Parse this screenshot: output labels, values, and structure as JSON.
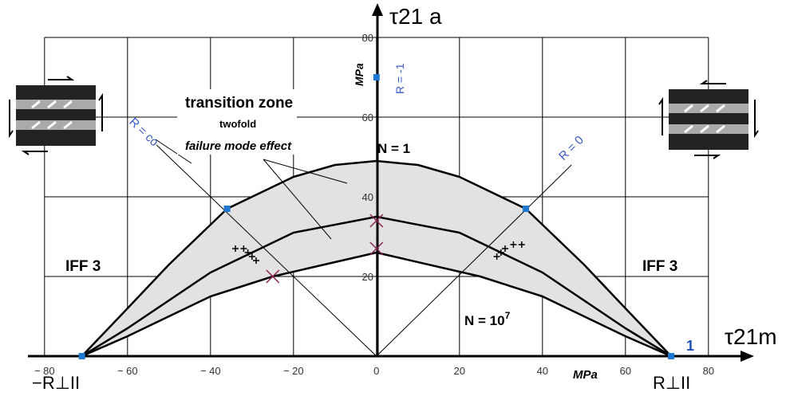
{
  "chart_data": {
    "type": "line",
    "y_axis_label": "τ21 a",
    "x_axis_label": "τ21m",
    "y_unit_label": "MPa",
    "x_unit_label": "MPa",
    "left_intercept_label": "−R⊥II",
    "right_intercept_label": "R⊥II",
    "right_point_label": "1",
    "r_minus_one_label": "R = -1",
    "left_mode_label": "IFF 3",
    "right_mode_label": "IFF 3",
    "n1_label": "N = 1",
    "n_high_label": {
      "base": "N = 10",
      "exponent": "7"
    },
    "transition_title": "transition zone",
    "transition_line2": "twofold",
    "transition_line3": "failure mode effect",
    "xlim": [
      -84,
      91
    ],
    "ylim": [
      0,
      88
    ],
    "xticks": [
      {
        "value": -80,
        "label": "− 80"
      },
      {
        "value": -60,
        "label": "− 60"
      },
      {
        "value": -40,
        "label": "− 40"
      },
      {
        "value": -20,
        "label": "− 20"
      },
      0,
      20,
      40,
      60,
      80
    ],
    "yticks": [
      20,
      40,
      60,
      80
    ],
    "grid": true,
    "series": [
      {
        "color": "#000000",
        "x": [
          -71,
          -60,
          -50,
          -36,
          -20,
          -10,
          0,
          10,
          20,
          36,
          50,
          60,
          71
        ],
        "values": [
          0,
          12,
          23,
          37,
          45,
          48,
          49,
          48,
          45,
          37,
          23,
          12,
          0
        ]
      },
      {
        "color": "#000000",
        "x": [
          -71,
          -60,
          -40,
          -20,
          0,
          20,
          40,
          60,
          71
        ],
        "values": [
          0,
          7,
          21,
          31,
          35,
          31,
          21,
          7,
          0
        ]
      },
      {
        "color": "#000000",
        "x": [
          -71,
          -60,
          -40,
          -25,
          0,
          25,
          40,
          60,
          71
        ],
        "values": [
          0,
          5,
          15,
          20,
          26,
          20,
          15,
          5,
          0
        ]
      }
    ],
    "band_color": "#e2e2e2",
    "reference_lines": [
      {
        "label": "R = co",
        "x": [
          -53,
          0
        ],
        "values": [
          53,
          0
        ]
      },
      {
        "label": "R = 0",
        "x": [
          0,
          47
        ],
        "values": [
          0,
          48
        ]
      }
    ],
    "blue_points": {
      "color": "#1e78d2",
      "x": [
        -36,
        36,
        -71,
        71,
        0
      ],
      "values": [
        37,
        37,
        0,
        0,
        70
      ]
    },
    "cross_markers": {
      "color": "#8b2252",
      "x": [
        -25,
        0,
        0
      ],
      "values": [
        20,
        34,
        27
      ]
    },
    "hash_markers": {
      "color": "#000000",
      "x": [
        -34,
        -32,
        -31,
        -30,
        -29,
        29,
        30,
        31,
        33,
        35
      ],
      "values": [
        27,
        27,
        26,
        25,
        24,
        25,
        26,
        27,
        28,
        28
      ]
    }
  }
}
